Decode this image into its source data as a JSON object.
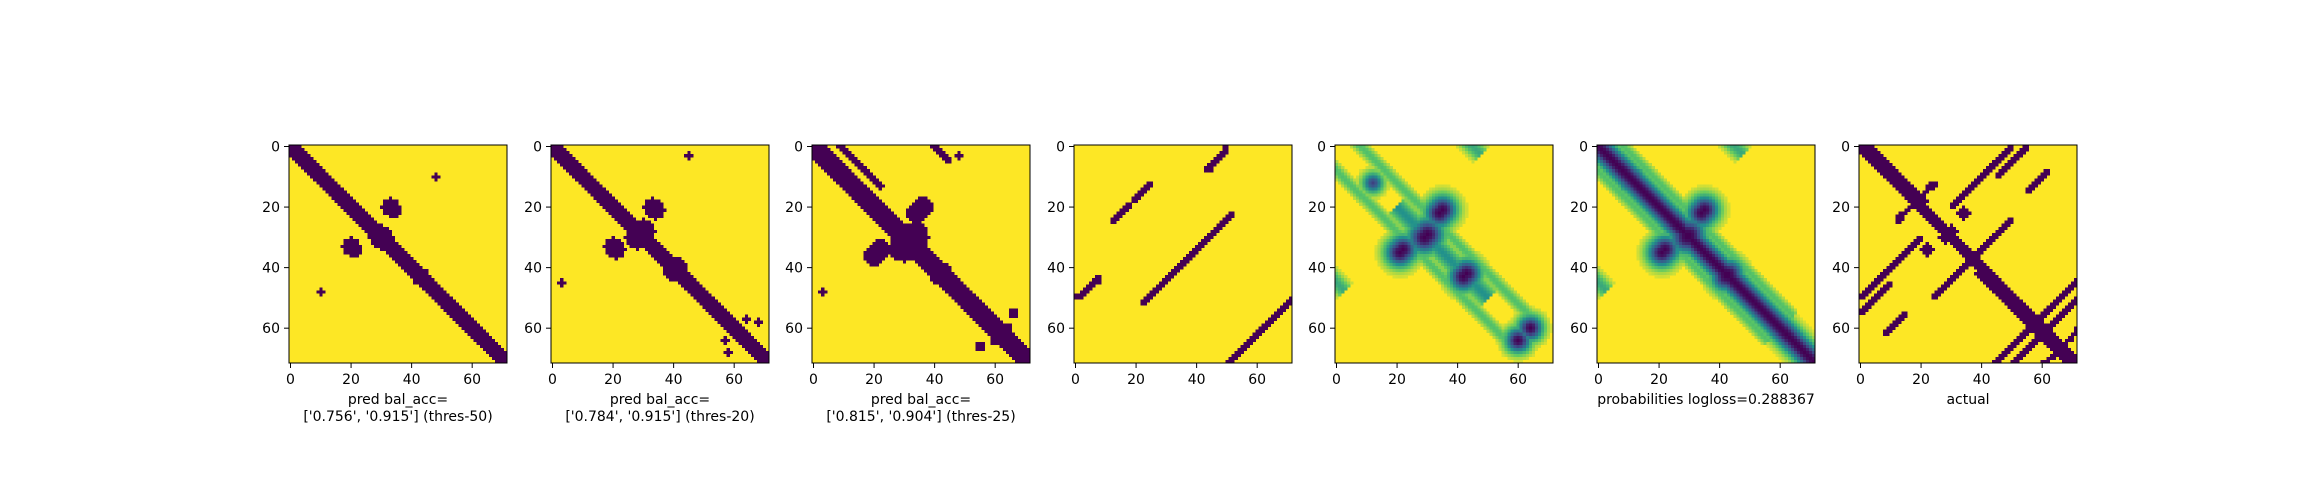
{
  "colors": {
    "background": "#440154",
    "foreground": "#fde725",
    "colormap": [
      "#440154",
      "#3b528b",
      "#21918c",
      "#5ec962",
      "#fde725"
    ]
  },
  "chart_data": [
    {
      "type": "heatmap",
      "title": "",
      "xlabel": "pred bal_acc=\n['0.756', '0.915'] (thres-50)",
      "ylabel": "",
      "size": 72,
      "xticks": [
        0,
        20,
        40,
        60
      ],
      "yticks": [
        0,
        20,
        40,
        60
      ],
      "binary": true,
      "features": [
        {
          "kind": "band",
          "offset": 0,
          "width": 2.2,
          "from": 0,
          "to": 72
        },
        {
          "kind": "blob",
          "cx": 30,
          "cy": 30,
          "r": 4
        },
        {
          "kind": "blob",
          "cx": 33,
          "cy": 20,
          "r": 3
        },
        {
          "kind": "blob",
          "cx": 21,
          "cy": 34,
          "r": 2.5
        },
        {
          "kind": "blob",
          "cx": 43,
          "cy": 43,
          "r": 3
        },
        {
          "kind": "blob",
          "cx": 10,
          "cy": 48,
          "r": 1
        }
      ]
    },
    {
      "type": "heatmap",
      "title": "",
      "xlabel": "pred bal_acc=\n['0.784', '0.915'] (thres-20)",
      "ylabel": "",
      "size": 72,
      "xticks": [
        0,
        20,
        40,
        60
      ],
      "yticks": [
        0,
        20,
        40,
        60
      ],
      "binary": true,
      "features": [
        {
          "kind": "band",
          "offset": 0,
          "width": 2.5,
          "from": 0,
          "to": 72
        },
        {
          "kind": "blob",
          "cx": 30,
          "cy": 28,
          "r": 4
        },
        {
          "kind": "blob",
          "cx": 33,
          "cy": 20,
          "r": 3
        },
        {
          "kind": "blob",
          "cx": 21,
          "cy": 34,
          "r": 3
        },
        {
          "kind": "blob",
          "cx": 41,
          "cy": 40,
          "r": 3.5
        },
        {
          "kind": "blob",
          "cx": 10,
          "cy": 10,
          "r": 1.5
        },
        {
          "kind": "blob",
          "cx": 3,
          "cy": 45,
          "r": 1
        },
        {
          "kind": "blob",
          "cx": 57,
          "cy": 64,
          "r": 1.2
        },
        {
          "kind": "blob",
          "cx": 68,
          "cy": 58,
          "r": 1
        }
      ]
    },
    {
      "type": "heatmap",
      "title": "",
      "xlabel": "pred bal_acc=\n['0.815', '0.904'] (thres-25)",
      "ylabel": "",
      "size": 72,
      "xticks": [
        0,
        20,
        40,
        60
      ],
      "yticks": [
        0,
        20,
        40,
        60
      ],
      "binary": true,
      "features": [
        {
          "kind": "band",
          "offset": 0,
          "width": 3,
          "from": 0,
          "to": 72
        },
        {
          "kind": "blob",
          "cx": 33,
          "cy": 30,
          "r": 5
        },
        {
          "kind": "blob",
          "cx": 36,
          "cy": 20,
          "r": 3.5
        },
        {
          "kind": "blob",
          "cx": 22,
          "cy": 34,
          "r": 3.5
        },
        {
          "kind": "blob",
          "cx": 42,
          "cy": 42,
          "r": 4
        },
        {
          "kind": "blob",
          "cx": 10,
          "cy": 12,
          "r": 2
        },
        {
          "kind": "band",
          "offset": 9,
          "width": 1,
          "from": 0,
          "to": 18
        },
        {
          "kind": "band",
          "offset": -45,
          "width": 1,
          "from": 0,
          "to": 20
        },
        {
          "kind": "band",
          "offset": 40,
          "width": 1,
          "from": 5,
          "to": 25
        },
        {
          "kind": "blob",
          "cx": 3,
          "cy": 48,
          "r": 1.2
        },
        {
          "kind": "blob",
          "cx": 60,
          "cy": 64,
          "r": 1.5
        },
        {
          "kind": "blob",
          "cx": 66,
          "cy": 55,
          "r": 1.5
        }
      ]
    },
    {
      "type": "heatmap",
      "title": "",
      "xlabel": "",
      "ylabel": "",
      "size": 72,
      "xticks": [
        0,
        20,
        40,
        60
      ],
      "yticks": [
        0,
        20,
        40,
        60
      ],
      "binary": true,
      "features": [
        {
          "kind": "segment",
          "x1": 0,
          "y1": 50,
          "x2": 8,
          "y2": 43,
          "w": 0.8
        },
        {
          "kind": "segment",
          "x1": 12,
          "y1": 25,
          "x2": 18,
          "y2": 19,
          "w": 0.8
        },
        {
          "kind": "segment",
          "x1": 30,
          "y1": 44,
          "x2": 52,
          "y2": 22,
          "w": 0.8
        },
        {
          "kind": "segment",
          "x1": 44,
          "y1": 8,
          "x2": 50,
          "y2": 1,
          "w": 0.8
        },
        {
          "kind": "segment",
          "x1": 50,
          "y1": 72,
          "x2": 72,
          "y2": 50,
          "w": 0.8
        }
      ]
    },
    {
      "type": "heatmap",
      "title": "",
      "xlabel": "",
      "ylabel": "",
      "size": 72,
      "xticks": [
        0,
        20,
        40,
        60
      ],
      "yticks": [
        0,
        20,
        40,
        60
      ],
      "binary": false,
      "features": [
        {
          "kind": "blob",
          "cx": 30,
          "cy": 29,
          "r": 4,
          "strength": 1
        },
        {
          "kind": "blob",
          "cx": 35,
          "cy": 21,
          "r": 3.5,
          "strength": 1
        },
        {
          "kind": "blob",
          "cx": 22,
          "cy": 34,
          "r": 3.5,
          "strength": 1
        },
        {
          "kind": "blob",
          "cx": 43,
          "cy": 42,
          "r": 3.5,
          "strength": 1
        },
        {
          "kind": "blob",
          "cx": 60,
          "cy": 64,
          "r": 3,
          "strength": 1
        },
        {
          "kind": "blob",
          "cx": 12,
          "cy": 12,
          "r": 2.5,
          "strength": 0.8
        },
        {
          "kind": "band",
          "offset": 0,
          "width": 2.5,
          "from": 20,
          "to": 50,
          "strength": 0.5
        },
        {
          "kind": "band",
          "offset": 45,
          "width": 2,
          "from": 0,
          "to": 25,
          "strength": 0.4
        },
        {
          "kind": "band",
          "offset": -45,
          "width": 2,
          "from": 0,
          "to": 25,
          "strength": 0.4
        },
        {
          "kind": "band",
          "offset": 8,
          "width": 1.5,
          "from": 0,
          "to": 60,
          "strength": 0.3
        },
        {
          "kind": "band",
          "offset": -8,
          "width": 1.5,
          "from": 0,
          "to": 60,
          "strength": 0.3
        }
      ]
    },
    {
      "type": "heatmap",
      "title": "",
      "xlabel": "probabilities logloss=0.288367",
      "ylabel": "",
      "size": 72,
      "xticks": [
        0,
        20,
        40,
        60
      ],
      "yticks": [
        0,
        20,
        40,
        60
      ],
      "binary": false,
      "features": [
        {
          "kind": "band",
          "offset": 0,
          "width": 3,
          "from": 0,
          "to": 72,
          "strength": 1
        },
        {
          "kind": "blob",
          "cx": 30,
          "cy": 29,
          "r": 4,
          "strength": 1
        },
        {
          "kind": "blob",
          "cx": 35,
          "cy": 21,
          "r": 3.5,
          "strength": 1
        },
        {
          "kind": "blob",
          "cx": 22,
          "cy": 34,
          "r": 3.5,
          "strength": 1
        },
        {
          "kind": "blob",
          "cx": 43,
          "cy": 42,
          "r": 3.5,
          "strength": 1
        },
        {
          "kind": "blob",
          "cx": 12,
          "cy": 10,
          "r": 2.5,
          "strength": 0.8
        },
        {
          "kind": "band",
          "offset": 45,
          "width": 2,
          "from": 0,
          "to": 25,
          "strength": 0.4
        },
        {
          "kind": "band",
          "offset": -45,
          "width": 2,
          "from": 0,
          "to": 25,
          "strength": 0.4
        },
        {
          "kind": "band",
          "offset": 8,
          "width": 1.5,
          "from": 0,
          "to": 60,
          "strength": 0.3
        },
        {
          "kind": "band",
          "offset": -8,
          "width": 1.5,
          "from": 0,
          "to": 60,
          "strength": 0.3
        }
      ]
    },
    {
      "type": "heatmap",
      "title": "",
      "xlabel": "actual",
      "ylabel": "",
      "size": 72,
      "xticks": [
        0,
        20,
        40,
        60
      ],
      "yticks": [
        0,
        20,
        40,
        60
      ],
      "binary": true,
      "features": [
        {
          "kind": "band",
          "offset": 0,
          "width": 1.6,
          "from": 0,
          "to": 72
        },
        {
          "kind": "band",
          "offset": 3,
          "width": 0.8,
          "from": 0,
          "to": 20
        },
        {
          "kind": "band",
          "offset": -3,
          "width": 0.8,
          "from": 40,
          "to": 72
        },
        {
          "kind": "blob",
          "cx": 30,
          "cy": 28,
          "r": 2
        },
        {
          "kind": "blob",
          "cx": 34,
          "cy": 22,
          "r": 2
        },
        {
          "kind": "blob",
          "cx": 22,
          "cy": 34,
          "r": 2
        },
        {
          "kind": "blob",
          "cx": 42,
          "cy": 42,
          "r": 2
        },
        {
          "kind": "segment",
          "x1": 0,
          "y1": 55,
          "x2": 10,
          "y2": 45,
          "w": 0.8
        },
        {
          "kind": "segment",
          "x1": 5,
          "y1": 45,
          "x2": 20,
          "y2": 30,
          "w": 0.8
        },
        {
          "kind": "segment",
          "x1": 12,
          "y1": 25,
          "x2": 24,
          "y2": 12,
          "w": 0.8
        },
        {
          "kind": "segment",
          "x1": 30,
          "y1": 44,
          "x2": 50,
          "y2": 24,
          "w": 0.8
        },
        {
          "kind": "segment",
          "x1": 40,
          "y1": 10,
          "x2": 50,
          "y2": 0,
          "w": 0.8
        },
        {
          "kind": "segment",
          "x1": 50,
          "y1": 72,
          "x2": 72,
          "y2": 50,
          "w": 0.8
        },
        {
          "kind": "segment",
          "x1": 44,
          "y1": 72,
          "x2": 68,
          "y2": 48,
          "w": 0.8
        },
        {
          "kind": "segment",
          "x1": 55,
          "y1": 15,
          "x2": 62,
          "y2": 8,
          "w": 0.8
        },
        {
          "kind": "segment",
          "x1": 63,
          "y1": 70,
          "x2": 72,
          "y2": 60,
          "w": 0.8
        }
      ]
    }
  ]
}
